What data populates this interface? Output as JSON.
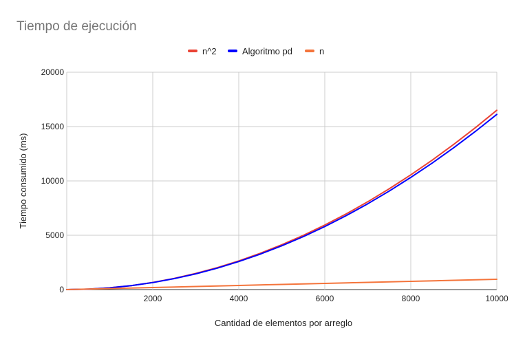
{
  "chart_data": {
    "type": "line",
    "title": "Tiempo de ejecución",
    "xlabel": "Cantidad de elementos por arreglo",
    "ylabel": "Tiempo consumido (ms)",
    "xlim": [
      0,
      10000
    ],
    "ylim": [
      0,
      20000
    ],
    "x_ticks": [
      2000,
      4000,
      6000,
      8000,
      10000
    ],
    "y_ticks": [
      0,
      5000,
      10000,
      15000,
      20000
    ],
    "grid": true,
    "legend_position": "top",
    "series": [
      {
        "name": "n^2",
        "color": "#ea4335",
        "x": [
          0,
          500,
          1000,
          1500,
          2000,
          2500,
          3000,
          3500,
          4000,
          4500,
          5000,
          5500,
          6000,
          6500,
          7000,
          7500,
          8000,
          8500,
          9000,
          9500,
          10000
        ],
        "y": [
          0,
          40,
          165,
          370,
          660,
          1030,
          1485,
          2020,
          2640,
          3340,
          4125,
          4990,
          5940,
          6970,
          8085,
          9280,
          10560,
          11920,
          13365,
          14890,
          16500
        ]
      },
      {
        "name": "Algoritmo pd",
        "color": "#0000ff",
        "x": [
          0,
          500,
          1000,
          1500,
          2000,
          2500,
          3000,
          3500,
          4000,
          4500,
          5000,
          5500,
          6000,
          6500,
          7000,
          7500,
          8000,
          8500,
          9000,
          9500,
          10000
        ],
        "y": [
          0,
          40,
          165,
          365,
          645,
          1010,
          1450,
          1975,
          2580,
          3265,
          4030,
          4875,
          5800,
          6810,
          7900,
          9070,
          10320,
          11650,
          13060,
          14550,
          16120
        ]
      },
      {
        "name": "n",
        "color": "#f4743b",
        "x": [
          0,
          1000,
          2000,
          3000,
          4000,
          5000,
          6000,
          7000,
          8000,
          9000,
          10000
        ],
        "y": [
          0,
          95,
          190,
          285,
          380,
          475,
          570,
          665,
          760,
          855,
          950
        ]
      }
    ]
  }
}
